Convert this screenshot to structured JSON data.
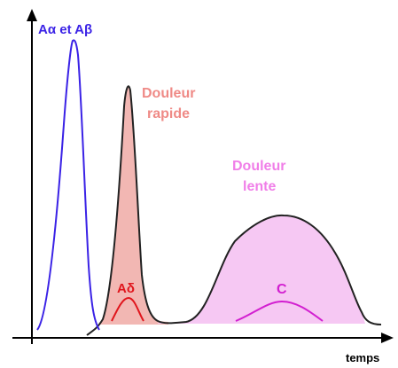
{
  "labels": {
    "alpha_beta": "Aα et Aβ",
    "douleur_rapide_1": "Douleur",
    "douleur_rapide_2": "rapide",
    "douleur_lente_1": "Douleur",
    "douleur_lente_2": "lente",
    "a_delta": "Aδ",
    "c": "C",
    "time_axis": "temps"
  },
  "colors": {
    "axis": "#000000",
    "alpha_beta_curve": "#3a22e6",
    "alpha_beta_label": "#3a22e6",
    "rapide_fill": "#f2b7b3",
    "rapide_label": "#ef8a86",
    "a_delta": "#e0151c",
    "lente_fill": "#f6c8f3",
    "lente_label": "#f07ee8",
    "c": "#d21fd0",
    "black_curve": "#222222"
  }
}
